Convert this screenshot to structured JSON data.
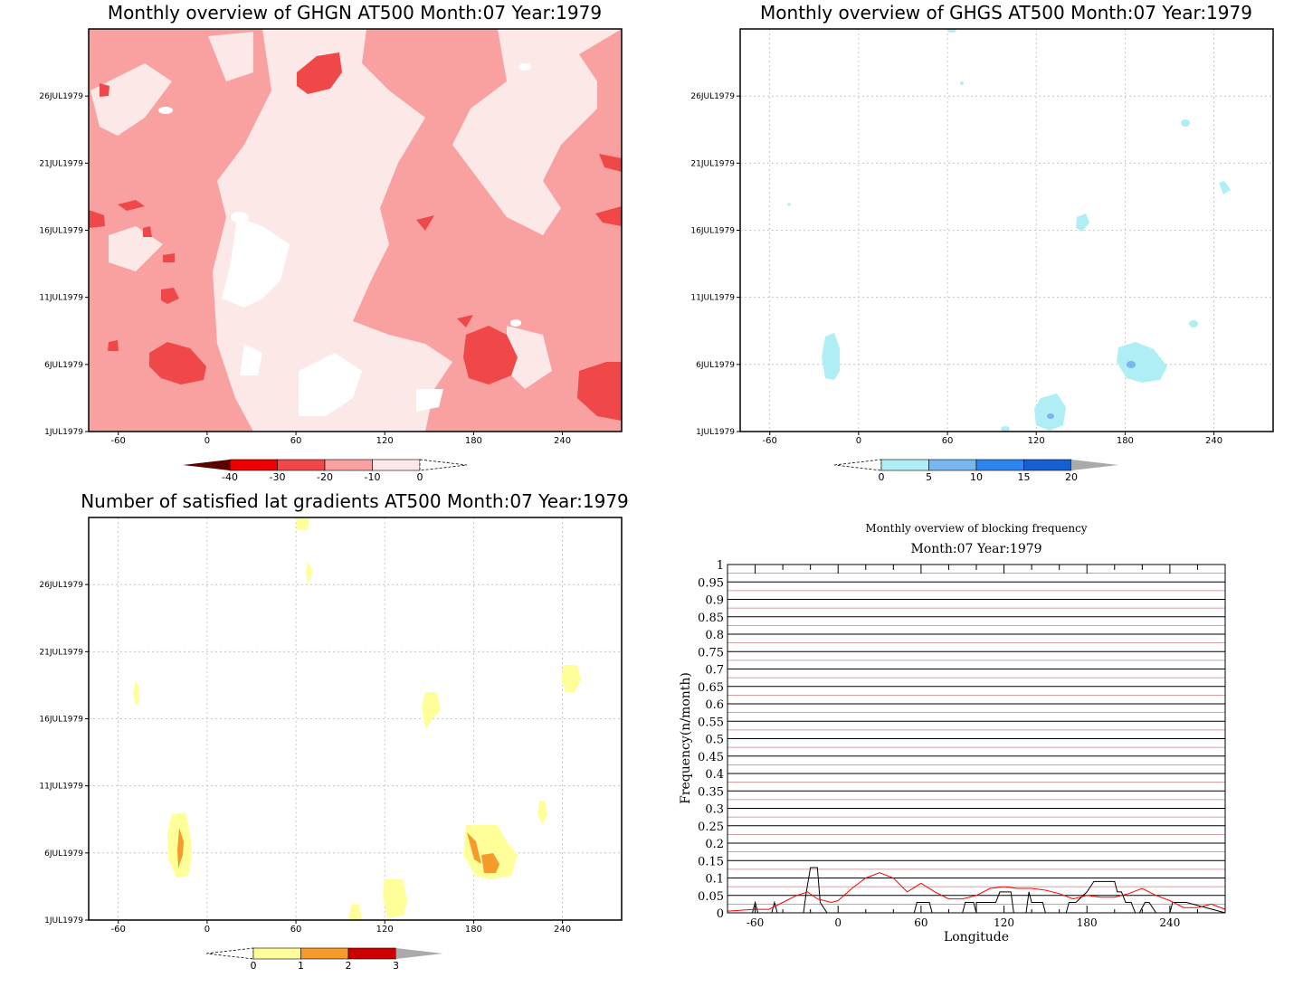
{
  "panels": {
    "ghgn": {
      "title": "Monthly overview of GHGN AT500 Month:07 Year:1979",
      "x_ticks": [
        "-60",
        "0",
        "60",
        "120",
        "180",
        "240"
      ],
      "y_ticks": [
        "1JUL1979",
        "6JUL1979",
        "11JUL1979",
        "16JUL1979",
        "21JUL1979",
        "26JUL1979"
      ],
      "colorbar": {
        "labels": [
          "-40",
          "-30",
          "-20",
          "-10",
          "0"
        ],
        "colors": [
          "#5a0000",
          "#ee0000",
          "#f04848",
          "#f9a0a0",
          "#fde8e8"
        ]
      }
    },
    "ghgs": {
      "title": "Monthly overview of GHGS AT500 Month:07 Year:1979",
      "x_ticks": [
        "-60",
        "0",
        "60",
        "120",
        "180",
        "240"
      ],
      "y_ticks": [
        "1JUL1979",
        "6JUL1979",
        "11JUL1979",
        "16JUL1979",
        "21JUL1979",
        "26JUL1979"
      ],
      "colorbar": {
        "labels": [
          "0",
          "5",
          "10",
          "15",
          "20"
        ],
        "colors": [
          "#aeeef4",
          "#78b6ef",
          "#2c86ee",
          "#1560d0",
          "#aaaaaa"
        ]
      }
    },
    "lat_grad": {
      "title": "Number of satisfied lat gradients AT500 Month:07 Year:1979",
      "x_ticks": [
        "-60",
        "0",
        "60",
        "120",
        "180",
        "240"
      ],
      "y_ticks": [
        "1JUL1979",
        "6JUL1979",
        "11JUL1979",
        "16JUL1979",
        "21JUL1979",
        "26JUL1979"
      ],
      "colorbar": {
        "labels": [
          "0",
          "1",
          "2",
          "3"
        ],
        "colors": [
          "#ffff99",
          "#f59a2b",
          "#cc0000",
          "#aaaaaa"
        ]
      }
    },
    "blocking": {
      "title": "Monthly overview of blocking frequency",
      "subtitle": "Month:07 Year:1979",
      "xlabel": "Longitude",
      "ylabel": "Frequency(n/month)"
    }
  },
  "chart_data": [
    {
      "type": "heatmap",
      "title": "Monthly overview of GHGN AT500 Month:07 Year:1979",
      "xlim": [
        -80,
        280
      ],
      "ylim_dates": [
        "1JUL1979",
        "31JUL1979"
      ],
      "levels": [
        -40,
        -30,
        -20,
        -10,
        0
      ],
      "note_regions": [
        {
          "lon": -10,
          "date": "6JUL1979",
          "class": "-20 to -30"
        },
        {
          "lon": 180,
          "date": "7JUL1979",
          "class": "-20 to -30"
        },
        {
          "lon": 75,
          "date": "28JUL1979",
          "class": "-20 to -30"
        },
        {
          "lon": 265,
          "date": "5JUL1979",
          "class": "-20 to -30"
        }
      ]
    },
    {
      "type": "heatmap",
      "title": "Monthly overview of GHGS AT500 Month:07 Year:1979",
      "xlim": [
        -80,
        280
      ],
      "ylim_dates": [
        "1JUL1979",
        "31JUL1979"
      ],
      "levels": [
        0,
        5,
        10,
        15,
        20
      ],
      "note_regions": [
        {
          "lon": -18,
          "date": "6JUL1979",
          "class": "0 to 5"
        },
        {
          "lon": 185,
          "date": "6JUL1979",
          "class": "0 to 5"
        },
        {
          "lon": 130,
          "date": "2JUL1979",
          "class": "0 to 5"
        },
        {
          "lon": 148,
          "date": "17JUL1979",
          "class": "0 to 5"
        }
      ]
    },
    {
      "type": "heatmap",
      "title": "Number of satisfied lat gradients AT500 Month:07 Year:1979",
      "xlim": [
        -80,
        280
      ],
      "ylim_dates": [
        "1JUL1979",
        "31JUL1979"
      ],
      "levels": [
        0,
        1,
        2,
        3
      ],
      "note_regions": [
        {
          "lon": -18,
          "date": "6JUL1979",
          "class": "1 to 2"
        },
        {
          "lon": 188,
          "date": "6JUL1979",
          "class": "1 to 2"
        },
        {
          "lon": 125,
          "date": "2JUL1979",
          "class": "0 to 1"
        },
        {
          "lon": 150,
          "date": "16JUL1979",
          "class": "0 to 1"
        },
        {
          "lon": 245,
          "date": "19JUL1979",
          "class": "0 to 1"
        }
      ]
    },
    {
      "type": "line",
      "title": "Monthly overview of blocking frequency",
      "subtitle": "Month:07 Year:1979",
      "xlabel": "Longitude",
      "ylabel": "Frequency(n/month)",
      "xlim": [
        -80,
        280
      ],
      "ylim": [
        0,
        1
      ],
      "x_ticks": [
        -60,
        0,
        60,
        120,
        180,
        240
      ],
      "y_ticks": [
        "0",
        "0.05",
        "0.1",
        "0.15",
        "0.2",
        "0.25",
        "0.3",
        "0.35",
        "0.4",
        "0.45",
        "0.5",
        "0.55",
        "0.6",
        "0.65",
        "0.7",
        "0.75",
        "0.8",
        "0.85",
        "0.9",
        "0.95",
        "1"
      ],
      "series": [
        {
          "color": "#000000",
          "x": [
            -80,
            -62,
            -60,
            -58,
            -48,
            -46,
            -44,
            -25,
            -23,
            -20,
            -15,
            -13,
            -8,
            0,
            55,
            57,
            60,
            66,
            68,
            70,
            90,
            92,
            98,
            100,
            100,
            114,
            117,
            121,
            125,
            127,
            136,
            138,
            140,
            145,
            148,
            150,
            154,
            165,
            167,
            172,
            180,
            185,
            192,
            195,
            200,
            202,
            205,
            208,
            212,
            215,
            218,
            222,
            225,
            230,
            240,
            242,
            252,
            280
          ],
          "y": [
            0,
            0,
            0.03,
            0,
            0,
            0.03,
            0,
            0,
            0.06,
            0.13,
            0.13,
            0.03,
            0,
            0,
            0,
            0.03,
            0.03,
            0.03,
            0,
            0,
            0,
            0.03,
            0.03,
            0,
            0.03,
            0.03,
            0.06,
            0.06,
            0.06,
            0,
            0,
            0.06,
            0.03,
            0.03,
            0.03,
            0,
            0,
            0,
            0.03,
            0.03,
            0.06,
            0.09,
            0.09,
            0.09,
            0.09,
            0.06,
            0.06,
            0.03,
            0.03,
            0,
            0,
            0.03,
            0.03,
            0,
            0,
            0.03,
            0.03,
            0
          ]
        },
        {
          "color": "#ff0000",
          "x": [
            -80,
            -60,
            -50,
            -40,
            -30,
            -22,
            -15,
            -5,
            0,
            10,
            20,
            30,
            40,
            50,
            60,
            70,
            80,
            90,
            100,
            110,
            120,
            130,
            140,
            150,
            160,
            170,
            180,
            190,
            200,
            210,
            220,
            230,
            240,
            250,
            260,
            270,
            280
          ],
          "y": [
            0.005,
            0.01,
            0.01,
            0.03,
            0.05,
            0.06,
            0.04,
            0.03,
            0.035,
            0.07,
            0.1,
            0.115,
            0.1,
            0.06,
            0.085,
            0.06,
            0.04,
            0.04,
            0.05,
            0.07,
            0.075,
            0.07,
            0.07,
            0.065,
            0.055,
            0.04,
            0.05,
            0.045,
            0.045,
            0.055,
            0.07,
            0.05,
            0.035,
            0.015,
            0.015,
            0.025,
            0.01
          ]
        }
      ]
    }
  ]
}
